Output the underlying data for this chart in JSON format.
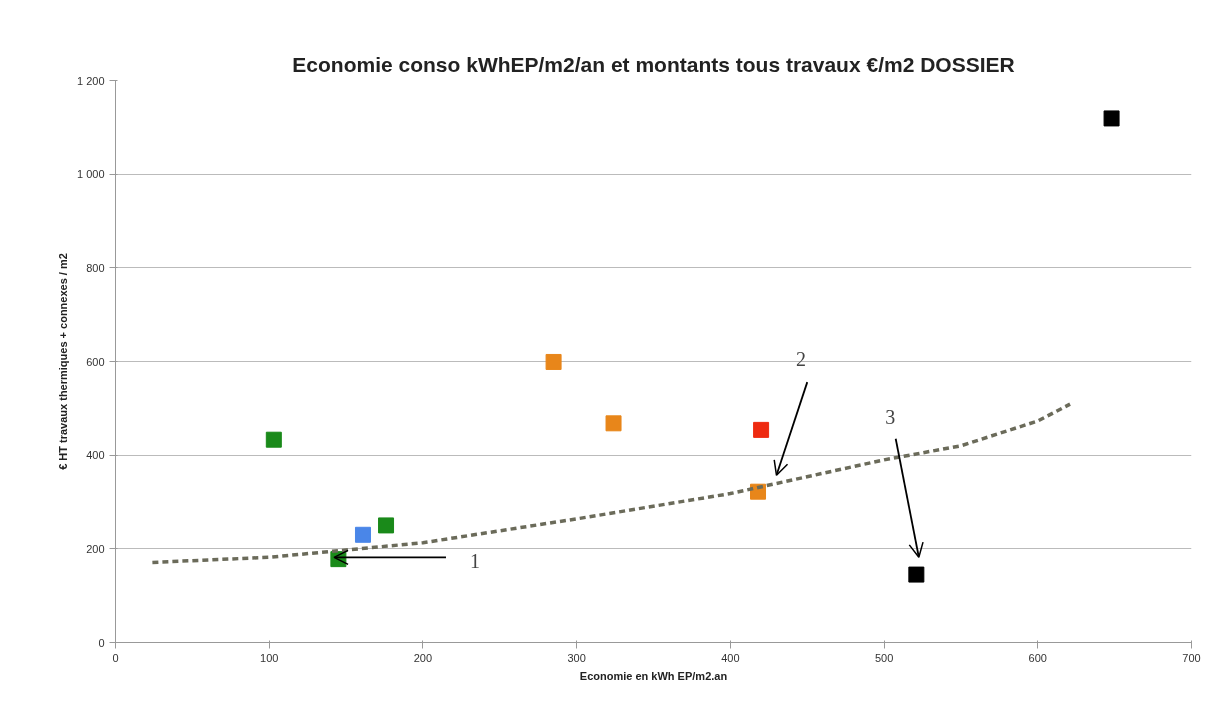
{
  "chart_data": {
    "type": "scatter",
    "title": "Economie conso kWhEP/m2/an et montants tous travaux €/m2 DOSSIER",
    "xlabel": "Economie en kWh EP/m2.an",
    "ylabel": "€ HT travaux thermiques + connexes / m2",
    "xlim": [
      0,
      700
    ],
    "xticks": [
      0,
      100,
      200,
      300,
      400,
      500,
      600,
      700
    ],
    "ylim": [
      0,
      1200
    ],
    "yticks": [
      0,
      200,
      400,
      600,
      800,
      {
        "value": 1000,
        "label": "1 000"
      },
      {
        "value": 1200,
        "label": "1 200"
      }
    ],
    "grid": "y",
    "marker": "square",
    "series": [
      {
        "x": [
          103,
          145,
          161,
          176,
          285,
          324,
          420,
          418,
          521,
          648
        ],
        "values": [
          433,
          178,
          230,
          250,
          599,
          468,
          454,
          322,
          145,
          1119
        ],
        "colors": [
          "#1a8a1a",
          "#1a8a1a",
          "#4a86e8",
          "#1a8a1a",
          "#e8861a",
          "#e8861a",
          "#ee2a10",
          "#e8861a",
          "#000000",
          "#000000"
        ]
      },
      {
        "type": "line",
        "line_style": "dashed",
        "marker": "none",
        "color": "#6b6b5a",
        "x": [
          24,
          100,
          200,
          300,
          400,
          500,
          550,
          600,
          621
        ],
        "values": [
          171,
          182,
          213,
          264,
          318,
          390,
          420,
          473,
          509
        ]
      }
    ],
    "annotations": [
      {
        "text": "1",
        "x": 145,
        "y": 178
      },
      "2",
      "3"
    ]
  }
}
